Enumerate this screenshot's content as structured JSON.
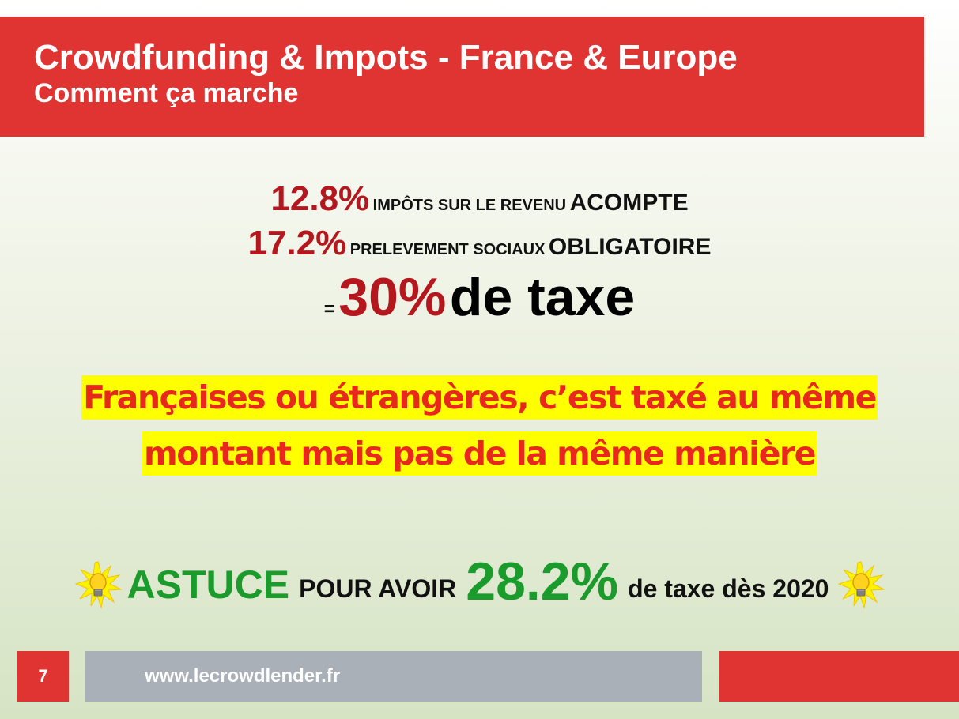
{
  "header": {
    "title": "Crowdfunding & Impots - France & Europe",
    "subtitle": "Comment ça marche"
  },
  "tax_lines": {
    "line1": {
      "percent": "12.8%",
      "label": "IMPÔTS SUR LE REVENU",
      "qualifier": "ACOMPTE"
    },
    "line2": {
      "percent": "17.2%",
      "label": "PRELEVEMENT SOCIAUX",
      "qualifier": "OBLIGATOIRE"
    },
    "total": {
      "equals": "=",
      "percent": "30%",
      "label": "de taxe"
    }
  },
  "highlight": {
    "line1": "Françaises ou étrangères, c’est taxé au même",
    "line2": "montant mais pas de la même manière"
  },
  "astuce": {
    "word": "ASTUCE",
    "pour_avoir": "POUR AVOIR",
    "percent": "28.2%",
    "suffix": "de taxe dès 2020",
    "icon": "lightbulb-icon"
  },
  "footer": {
    "page_number": "7",
    "url": "www.lecrowdlender.fr"
  },
  "colors": {
    "brand_red": "#e03433",
    "percent_red": "#b5171e",
    "highlight_yellow": "#ffff00",
    "highlight_text": "#e8281d",
    "astuce_green": "#1a9b2c",
    "footer_gray": "#aab0b8"
  }
}
